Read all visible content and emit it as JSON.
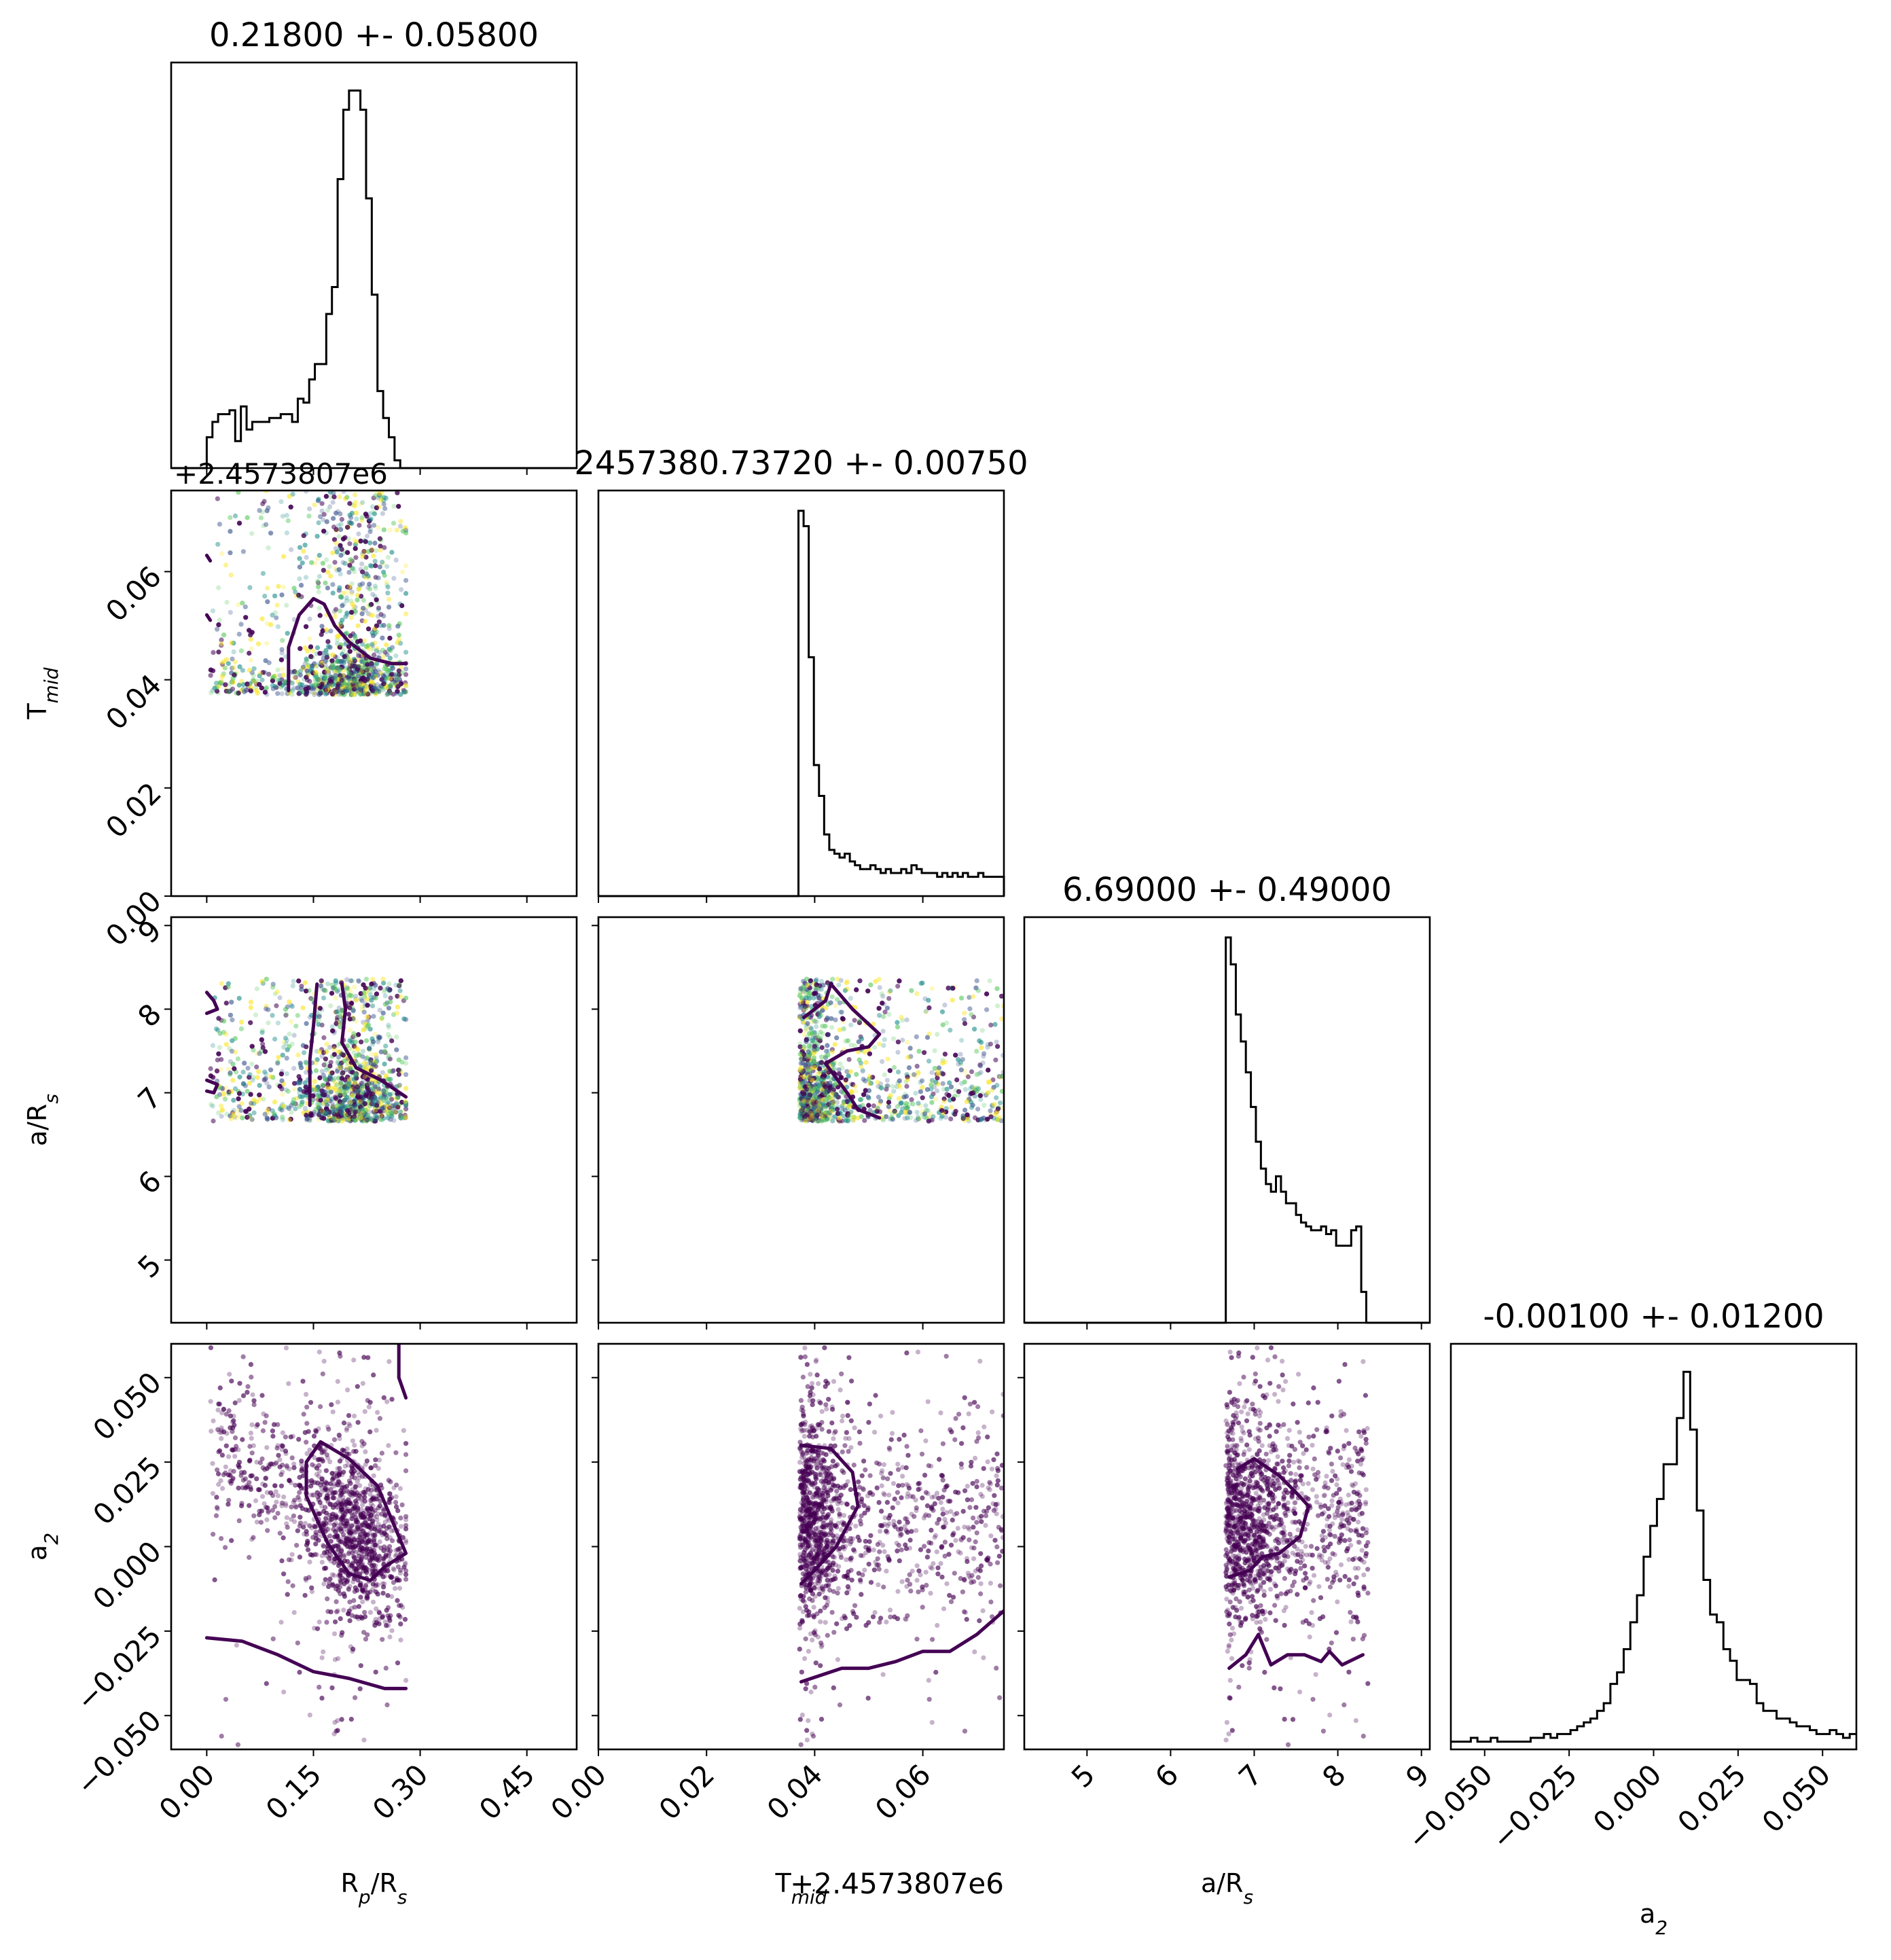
{
  "chart_data": {
    "type": "corner",
    "parameters": [
      {
        "key": "rp",
        "axis_label": "R$_p$/R$_s$",
        "label_main": "R",
        "label_sub": "p",
        "label_tail": "/R",
        "label_tail_sub": "s",
        "title": "0.21800 +- 0.05800",
        "range": [
          -0.05,
          0.52
        ],
        "ticks": [
          "0.00",
          "0.15",
          "0.30",
          "0.45"
        ],
        "tick_values": [
          0.0,
          0.15,
          0.3,
          0.45
        ]
      },
      {
        "key": "tmid",
        "axis_label": "T$_{mid}$",
        "label_main": "T",
        "label_sub": "mid",
        "title": "2457380.73720 +- 0.00750",
        "range": [
          0.0,
          0.075
        ],
        "ticks": [
          "0.00",
          "0.02",
          "0.04",
          "0.06"
        ],
        "tick_values": [
          0.0,
          0.02,
          0.04,
          0.06
        ],
        "offset_text": "+2.4573807e6"
      },
      {
        "key": "ars",
        "axis_label": "a/R$_s$",
        "label_main": "a/R",
        "label_sub": "s",
        "title": "6.69000 +- 0.49000",
        "range": [
          4.25,
          9.1
        ],
        "ticks": [
          "5",
          "6",
          "7",
          "8",
          "9"
        ],
        "tick_values": [
          5,
          6,
          7,
          8,
          9
        ]
      },
      {
        "key": "a2",
        "axis_label": "a$_2$",
        "label_main": "a",
        "label_sub": "2",
        "title": "-0.00100 +- 0.01200",
        "range": [
          -0.06,
          0.06
        ],
        "ticks": [
          "−0.050",
          "−0.025",
          "0.000",
          "0.025",
          "0.050"
        ],
        "tick_values": [
          -0.05,
          -0.025,
          0.0,
          0.025,
          0.05
        ]
      }
    ],
    "histograms": {
      "rp": {
        "bin_edges_range": [
          0.0,
          0.28
        ],
        "counts": [
          0.08,
          0.12,
          0.14,
          0.14,
          0.15,
          0.07,
          0.16,
          0.1,
          0.12,
          0.12,
          0.12,
          0.13,
          0.13,
          0.14,
          0.14,
          0.12,
          0.18,
          0.17,
          0.23,
          0.27,
          0.27,
          0.4,
          0.47,
          0.75,
          0.93,
          0.98,
          0.98,
          0.93,
          0.7,
          0.45,
          0.2,
          0.13,
          0.08,
          0.02,
          0.0
        ]
      },
      "tmid": {
        "bin_edges_range": [
          0.037,
          0.075
        ],
        "counts": [
          1.0,
          0.96,
          0.62,
          0.34,
          0.26,
          0.16,
          0.12,
          0.11,
          0.1,
          0.11,
          0.09,
          0.08,
          0.07,
          0.07,
          0.08,
          0.07,
          0.06,
          0.07,
          0.06,
          0.06,
          0.07,
          0.06,
          0.08,
          0.07,
          0.06,
          0.06,
          0.06,
          0.05,
          0.06,
          0.05,
          0.06,
          0.05,
          0.06,
          0.05,
          0.05,
          0.06,
          0.05,
          0.05,
          0.05,
          0.05
        ]
      },
      "ars": {
        "bin_edges_range": [
          6.66,
          8.4
        ],
        "counts": [
          1.0,
          0.93,
          0.8,
          0.73,
          0.65,
          0.56,
          0.47,
          0.4,
          0.36,
          0.34,
          0.38,
          0.34,
          0.31,
          0.31,
          0.28,
          0.26,
          0.25,
          0.24,
          0.24,
          0.25,
          0.23,
          0.24,
          0.2,
          0.2,
          0.2,
          0.24,
          0.25,
          0.08,
          0.0
        ]
      },
      "a2": {
        "bin_edges_range": [
          -0.06,
          0.06
        ],
        "counts": [
          0.02,
          0.02,
          0.02,
          0.03,
          0.02,
          0.02,
          0.03,
          0.02,
          0.02,
          0.02,
          0.02,
          0.02,
          0.03,
          0.03,
          0.04,
          0.03,
          0.04,
          0.04,
          0.05,
          0.06,
          0.07,
          0.08,
          0.1,
          0.12,
          0.17,
          0.2,
          0.26,
          0.33,
          0.4,
          0.5,
          0.58,
          0.65,
          0.74,
          0.74,
          0.86,
          0.98,
          0.83,
          0.62,
          0.44,
          0.35,
          0.33,
          0.26,
          0.23,
          0.18,
          0.18,
          0.17,
          0.12,
          0.1,
          0.1,
          0.08,
          0.08,
          0.07,
          0.06,
          0.06,
          0.05,
          0.04,
          0.04,
          0.05,
          0.04,
          0.03,
          0.04
        ]
      }
    },
    "contours": {
      "rp_tmid": [
        [
          [
            0.0,
            0.063
          ],
          [
            0.005,
            0.062
          ]
        ],
        [
          [
            0.0,
            0.052
          ],
          [
            0.005,
            0.051
          ]
        ],
        [
          [
            0.115,
            0.038
          ],
          [
            0.115,
            0.046
          ],
          [
            0.13,
            0.052
          ],
          [
            0.15,
            0.055
          ],
          [
            0.165,
            0.054
          ],
          [
            0.18,
            0.05
          ],
          [
            0.2,
            0.047
          ],
          [
            0.23,
            0.044
          ],
          [
            0.26,
            0.043
          ],
          [
            0.28,
            0.043
          ]
        ]
      ],
      "rp_ars": [
        [
          [
            0.0,
            8.2
          ],
          [
            0.01,
            8.1
          ],
          [
            0.015,
            8.0
          ],
          [
            0.0,
            7.95
          ]
        ],
        [
          [
            0.0,
            7.15
          ],
          [
            0.015,
            7.1
          ],
          [
            0.01,
            7.0
          ],
          [
            0.0,
            7.02
          ]
        ],
        [
          [
            0.145,
            6.85
          ],
          [
            0.145,
            7.4
          ],
          [
            0.15,
            7.8
          ],
          [
            0.155,
            8.3
          ]
        ],
        [
          [
            0.19,
            8.3
          ],
          [
            0.195,
            8.0
          ],
          [
            0.19,
            7.6
          ],
          [
            0.21,
            7.3
          ],
          [
            0.245,
            7.15
          ],
          [
            0.28,
            6.95
          ]
        ]
      ],
      "tmid_ars": [
        [
          [
            0.038,
            7.9
          ],
          [
            0.042,
            8.1
          ],
          [
            0.043,
            8.3
          ],
          [
            0.047,
            8.0
          ],
          [
            0.052,
            7.7
          ],
          [
            0.05,
            7.55
          ],
          [
            0.046,
            7.5
          ],
          [
            0.042,
            7.35
          ],
          [
            0.046,
            7.0
          ],
          [
            0.048,
            6.8
          ],
          [
            0.052,
            6.7
          ]
        ]
      ],
      "rp_a2": [
        [
          [
            0.27,
            0.06
          ],
          [
            0.27,
            0.05
          ],
          [
            0.28,
            0.044
          ]
        ],
        [
          [
            0.14,
            0.025
          ],
          [
            0.16,
            0.031
          ],
          [
            0.2,
            0.026
          ],
          [
            0.24,
            0.018
          ],
          [
            0.27,
            0.003
          ],
          [
            0.28,
            -0.002
          ],
          [
            0.25,
            -0.006
          ],
          [
            0.23,
            -0.01
          ],
          [
            0.2,
            -0.008
          ],
          [
            0.17,
            0.001
          ],
          [
            0.14,
            0.015
          ],
          [
            0.14,
            0.025
          ]
        ],
        [
          [
            0.0,
            -0.027
          ],
          [
            0.05,
            -0.028
          ],
          [
            0.1,
            -0.032
          ],
          [
            0.15,
            -0.037
          ],
          [
            0.2,
            -0.039
          ],
          [
            0.25,
            -0.042
          ],
          [
            0.28,
            -0.042
          ]
        ]
      ],
      "tmid_a2": [
        [
          [
            0.0375,
            0.03
          ],
          [
            0.043,
            0.029
          ],
          [
            0.047,
            0.022
          ],
          [
            0.048,
            0.012
          ],
          [
            0.044,
            0.0
          ],
          [
            0.04,
            -0.007
          ],
          [
            0.0375,
            -0.011
          ]
        ],
        [
          [
            0.0375,
            -0.04
          ],
          [
            0.045,
            -0.036
          ],
          [
            0.05,
            -0.036
          ],
          [
            0.055,
            -0.034
          ],
          [
            0.06,
            -0.031
          ],
          [
            0.065,
            -0.031
          ],
          [
            0.07,
            -0.026
          ],
          [
            0.075,
            -0.019
          ]
        ]
      ],
      "ars_a2": [
        [
          [
            6.8,
            0.023
          ],
          [
            7.0,
            0.026
          ],
          [
            7.3,
            0.021
          ],
          [
            7.5,
            0.016
          ],
          [
            7.65,
            0.012
          ],
          [
            7.55,
            0.003
          ],
          [
            7.3,
            -0.002
          ],
          [
            7.1,
            -0.003
          ],
          [
            6.95,
            -0.007
          ],
          [
            6.7,
            -0.009
          ]
        ],
        [
          [
            6.7,
            -0.036
          ],
          [
            6.9,
            -0.032
          ],
          [
            7.05,
            -0.026
          ],
          [
            7.2,
            -0.035
          ],
          [
            7.4,
            -0.032
          ],
          [
            7.6,
            -0.032
          ],
          [
            7.8,
            -0.034
          ],
          [
            7.9,
            -0.031
          ],
          [
            8.05,
            -0.035
          ],
          [
            8.3,
            -0.032
          ]
        ]
      ]
    }
  }
}
